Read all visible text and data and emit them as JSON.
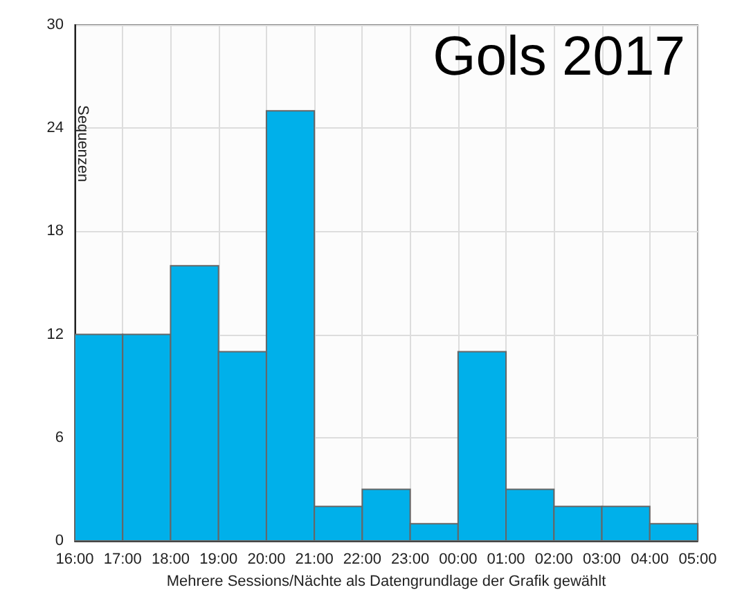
{
  "chart_data": {
    "type": "histogram",
    "title": "Gols 2017",
    "xlabel": "Mehrere Sessions/Nächte als Datengrundlage der Grafik gewählt",
    "ylabel": "Sequenzen",
    "bins": [
      "2017-06-01T16:00",
      "2017-06-01T17:00",
      "2017-06-01T18:00",
      "2017-06-01T19:00",
      "2017-06-01T20:00",
      "2017-06-01T21:00",
      "2017-06-01T22:00",
      "2017-06-01T23:00",
      "2017-06-02T00:00",
      "2017-06-02T01:00",
      "2017-06-02T02:00",
      "2017-06-02T03:00",
      "2017-06-02T04:00",
      "2017-06-02T05:00"
    ],
    "values": [
      12,
      12,
      16,
      11,
      25,
      2,
      3,
      1,
      11,
      3,
      2,
      2,
      1
    ],
    "color": "#00b0ea",
    "xlim": [
      "2017-06-01T16:00",
      "2017-06-02T05:00"
    ],
    "xticks": [
      {
        "value": "2017-06-01T16:00",
        "label": "16:00"
      },
      {
        "value": "2017-06-01T17:00",
        "label": "17:00"
      },
      {
        "value": "2017-06-01T18:00",
        "label": "18:00"
      },
      {
        "value": "2017-06-01T19:00",
        "label": "19:00"
      },
      {
        "value": "2017-06-01T20:00",
        "label": "20:00"
      },
      {
        "value": "2017-06-01T21:00",
        "label": "21:00"
      },
      {
        "value": "2017-06-01T22:00",
        "label": "22:00"
      },
      {
        "value": "2017-06-01T23:00",
        "label": "23:00"
      },
      {
        "value": "2017-06-02T00:00",
        "label": "00:00"
      },
      {
        "value": "2017-06-02T01:00",
        "label": "01:00"
      },
      {
        "value": "2017-06-02T02:00",
        "label": "02:00"
      },
      {
        "value": "2017-06-02T03:00",
        "label": "03:00"
      },
      {
        "value": "2017-06-02T04:00",
        "label": "04:00"
      },
      {
        "value": "2017-06-02T05:00",
        "label": "05:00"
      }
    ],
    "ylim": [
      0,
      30
    ],
    "yticks": [
      0,
      6,
      12,
      18,
      24,
      30
    ],
    "grid": true
  }
}
